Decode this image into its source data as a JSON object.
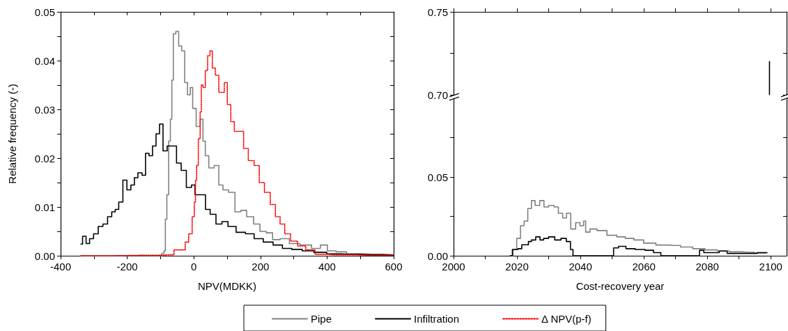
{
  "chart_data": [
    {
      "type": "step",
      "xlabel": "NPV(MDKK)",
      "ylabel": "Relative frequency (-)",
      "legend": "bottom",
      "marker": "none",
      "xlim": [
        -400,
        600
      ],
      "xticks": [
        -400,
        {
          "value": -300,
          "label": null
        },
        -200,
        {
          "value": -100,
          "label": null
        },
        0,
        {
          "value": 100,
          "label": null
        },
        200,
        {
          "value": 300,
          "label": null
        },
        400,
        {
          "value": 500,
          "label": null
        },
        600
      ],
      "ylim": [
        0,
        0.05
      ],
      "yticks": [
        {
          "value": 0,
          "label": "0.00"
        },
        {
          "value": 0.005,
          "label": null
        },
        {
          "value": 0.01,
          "label": "0.01"
        },
        {
          "value": 0.015,
          "label": null
        },
        {
          "value": 0.02,
          "label": "0.02"
        },
        {
          "value": 0.025,
          "label": null
        },
        {
          "value": 0.03,
          "label": "0.03"
        },
        {
          "value": 0.035,
          "label": null
        },
        {
          "value": 0.04,
          "label": "0.04"
        },
        {
          "value": 0.045,
          "label": null
        },
        {
          "value": 0.05,
          "label": "0.05"
        }
      ],
      "series": [
        {
          "name": "Pipe",
          "color": "#808080",
          "line_style": "solid",
          "x": [
            -339,
            -100,
            -92,
            -87,
            -84,
            -78,
            -73,
            -68,
            -64,
            -59,
            -49,
            -42,
            -31,
            -24,
            -14,
            -7,
            0,
            14,
            24,
            31,
            38,
            52,
            70,
            80,
            95,
            113,
            134,
            148,
            169,
            190,
            207,
            228,
            245,
            273,
            301,
            336,
            371,
            389,
            413,
            441,
            476,
            532,
            600
          ],
          "values": [
            0,
            0,
            0.0005,
            0.001,
            0.0075,
            0.0125,
            0.0235,
            0.028,
            0.036,
            0.0455,
            0.046,
            0.043,
            0.042,
            0.0355,
            0.033,
            0.0345,
            0.0302,
            0.0265,
            0.028,
            0.0235,
            0.0205,
            0.018,
            0.0185,
            0.0145,
            0.0135,
            0.013,
            0.009,
            0.0093,
            0.008,
            0.0065,
            0.005,
            0.0047,
            0.0033,
            0.0035,
            0.0025,
            0.0022,
            0.0015,
            0.0022,
            0.001,
            0.0008,
            0.0004,
            0.0003,
            0.0002
          ]
        },
        {
          "name": "Infiltration",
          "color": "#000000",
          "line_style": "solid",
          "x": [
            -339,
            -329,
            -318,
            -308,
            -294,
            -280,
            -266,
            -252,
            -241,
            -231,
            -220,
            -206,
            -196,
            -182,
            -175,
            -161,
            -150,
            -140,
            -129,
            -119,
            -108,
            -98,
            -87,
            -73,
            -59,
            -45,
            -31,
            -14,
            0,
            7,
            28,
            42,
            56,
            77,
            92,
            113,
            141,
            169,
            193,
            224,
            252,
            280,
            308,
            343,
            378,
            420,
            462,
            532,
            600
          ],
          "values": [
            0.0024,
            0.004,
            0.0025,
            0.0035,
            0.0045,
            0.006,
            0.0065,
            0.008,
            0.009,
            0.0095,
            0.011,
            0.0155,
            0.0135,
            0.0145,
            0.016,
            0.017,
            0.0165,
            0.021,
            0.0205,
            0.0225,
            0.025,
            0.027,
            0.0215,
            0.0225,
            0.0225,
            0.019,
            0.0175,
            0.014,
            0.0145,
            0.0125,
            0.0125,
            0.0095,
            0.0085,
            0.0065,
            0.007,
            0.006,
            0.0048,
            0.0045,
            0.0035,
            0.0028,
            0.0022,
            0.0015,
            0.0013,
            0.001,
            0.0007,
            0.0004,
            0.0003,
            0.0002,
            0.0001
          ]
        },
        {
          "name": "Δ NPV(p-f)",
          "color": "#ff0000",
          "line_style": "dotted",
          "x": [
            -339,
            -150,
            -70,
            -49,
            -31,
            -21,
            -10,
            0,
            3,
            7,
            10,
            17,
            21,
            24,
            31,
            38,
            45,
            52,
            59,
            70,
            80,
            88,
            95,
            106,
            116,
            127,
            144,
            155,
            172,
            190,
            203,
            221,
            238,
            252,
            266,
            280,
            301,
            322,
            350,
            378,
            420,
            532,
            600
          ],
          "values": [
            0,
            0.0001,
            0.0002,
            0.0012,
            0.0012,
            0.0028,
            0.0045,
            0.008,
            0.011,
            0.0155,
            0.0185,
            0.024,
            0.0295,
            0.035,
            0.0345,
            0.038,
            0.041,
            0.042,
            0.0385,
            0.037,
            0.0335,
            0.0335,
            0.0355,
            0.031,
            0.0275,
            0.0255,
            0.0255,
            0.022,
            0.0195,
            0.0185,
            0.015,
            0.013,
            0.0105,
            0.008,
            0.0065,
            0.0045,
            0.003,
            0.002,
            0.0012,
            0.0003,
            0.0002,
            0.0001,
            0.0001
          ]
        }
      ]
    },
    {
      "type": "step",
      "marker": "none",
      "tick_labels": "y",
      "xlim": [
        2000,
        2105
      ],
      "xticks": [
        2000,
        {
          "value": 2010,
          "label": null
        },
        2020,
        {
          "value": 2030,
          "label": null
        },
        2040,
        {
          "value": 2050,
          "label": null
        },
        2060,
        {
          "value": 2070,
          "label": null
        },
        2080,
        {
          "value": 2090,
          "label": null
        },
        2100
      ],
      "ylim": [
        0.7,
        0.75
      ],
      "yticks": [
        {
          "value": 0.7,
          "label": "0.70"
        },
        {
          "value": 0.725,
          "label": null
        },
        0.75
      ],
      "series": [
        {
          "color": "#000000",
          "line_style": "solid",
          "x": [
            2099.6,
            2099.6
          ],
          "values": [
            0.7,
            0.72
          ]
        }
      ]
    },
    {
      "type": "step",
      "xlabel": "Cost-recovery year",
      "marker": "none",
      "xlim": [
        2000,
        2105
      ],
      "xticks": [
        2000,
        {
          "value": 2010,
          "label": null
        },
        2020,
        {
          "value": 2030,
          "label": null
        },
        2040,
        {
          "value": 2050,
          "label": null
        },
        2060,
        {
          "value": 2070,
          "label": null
        },
        2080,
        {
          "value": 2090,
          "label": null
        },
        2100
      ],
      "ylim": [
        0,
        0.1
      ],
      "yticks": [
        {
          "value": 0,
          "label": "0.00"
        },
        {
          "value": 0.025,
          "label": null
        },
        0.05,
        {
          "value": 0.075,
          "label": null
        }
      ],
      "series": [
        {
          "color": "#808080",
          "line_style": "solid",
          "x": [
            2018.2,
            2019.3,
            2020.5,
            2021.7,
            2022.8,
            2024,
            2025.1,
            2026.3,
            2028,
            2029,
            2030.9,
            2032.5,
            2033.6,
            2035.2,
            2036,
            2037.9,
            2039.1,
            2040.6,
            2041.4,
            2041.9,
            2044.1,
            2046.4,
            2050.3,
            2052.6,
            2055.7,
            2058,
            2061.9,
            2065.7,
            2069.6,
            2073.5,
            2077.3,
            2081.2,
            2085.1,
            2088.9,
            2092.8,
            2096.7,
            2099
          ],
          "values": [
            0,
            0.004,
            0.011,
            0.019,
            0.022,
            0.03,
            0.035,
            0.032,
            0.035,
            0.031,
            0.032,
            0.031,
            0.027,
            0.024,
            0.027,
            0.017,
            0.021,
            0.019,
            0.022,
            0.015,
            0.017,
            0.016,
            0.013,
            0.012,
            0.011,
            0.01,
            0.008,
            0.0068,
            0.0065,
            0.0055,
            0.0045,
            0.0037,
            0.003,
            0.0025,
            0.0022,
            0.0017,
            0.002
          ]
        },
        {
          "color": "#000000",
          "line_style": "solid",
          "x": [
            2017.8,
            2019.3,
            2021.3,
            2021.7,
            2023.2,
            2024,
            2025.1,
            2026.7,
            2027.8,
            2029,
            2030.9,
            2032.9,
            2034.8,
            2036.3,
            2037.4,
            2037.9,
            2049.9,
            2051,
            2053,
            2055.7,
            2058.8,
            2061.9,
            2064.2,
            2066.5,
            2077,
            2078.1,
            2079.7,
            2082.4,
            2085.1,
            2087.4,
            2092.8,
            2098.7
          ],
          "values": [
            0,
            0.004,
            0.0045,
            0.007,
            0.007,
            0.009,
            0.01,
            0.012,
            0.01,
            0.011,
            0.012,
            0.01,
            0.011,
            0.009,
            0.004,
            0,
            0,
            0.005,
            0.006,
            0.0045,
            0.004,
            0.0035,
            0.002,
            0,
            0,
            0.0035,
            0.002,
            0.002,
            0.003,
            0.0015,
            0.0015,
            0.002
          ]
        }
      ]
    }
  ]
}
